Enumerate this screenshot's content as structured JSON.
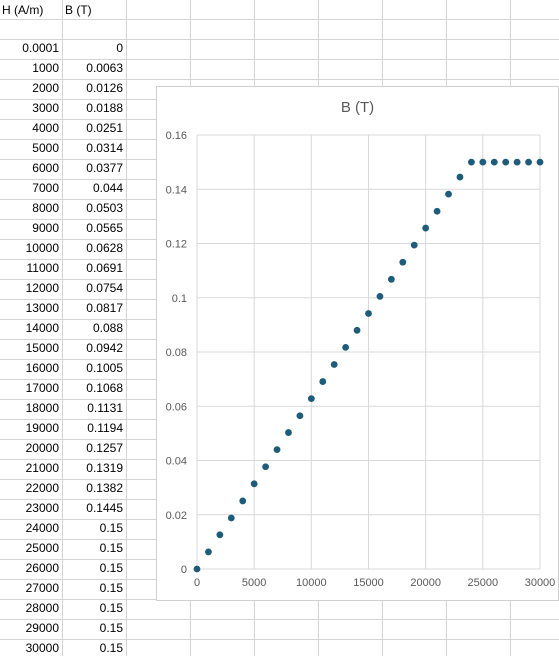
{
  "sheet": {
    "headers": [
      "H (A/m)",
      "B (T)"
    ],
    "rows": [
      [
        "0.0001",
        "0"
      ],
      [
        "1000",
        "0.0063"
      ],
      [
        "2000",
        "0.0126"
      ],
      [
        "3000",
        "0.0188"
      ],
      [
        "4000",
        "0.0251"
      ],
      [
        "5000",
        "0.0314"
      ],
      [
        "6000",
        "0.0377"
      ],
      [
        "7000",
        "0.044"
      ],
      [
        "8000",
        "0.0503"
      ],
      [
        "9000",
        "0.0565"
      ],
      [
        "10000",
        "0.0628"
      ],
      [
        "11000",
        "0.0691"
      ],
      [
        "12000",
        "0.0754"
      ],
      [
        "13000",
        "0.0817"
      ],
      [
        "14000",
        "0.088"
      ],
      [
        "15000",
        "0.0942"
      ],
      [
        "16000",
        "0.1005"
      ],
      [
        "17000",
        "0.1068"
      ],
      [
        "18000",
        "0.1131"
      ],
      [
        "19000",
        "0.1194"
      ],
      [
        "20000",
        "0.1257"
      ],
      [
        "21000",
        "0.1319"
      ],
      [
        "22000",
        "0.1382"
      ],
      [
        "23000",
        "0.1445"
      ],
      [
        "24000",
        "0.15"
      ],
      [
        "25000",
        "0.15"
      ],
      [
        "26000",
        "0.15"
      ],
      [
        "27000",
        "0.15"
      ],
      [
        "28000",
        "0.15"
      ],
      [
        "29000",
        "0.15"
      ],
      [
        "30000",
        "0.15"
      ]
    ]
  },
  "chart_data": {
    "type": "scatter",
    "title": "B (T)",
    "xlabel": "",
    "ylabel": "",
    "xlim": [
      0,
      30000
    ],
    "ylim": [
      0,
      0.16
    ],
    "xticks": [
      0,
      5000,
      10000,
      15000,
      20000,
      25000,
      30000
    ],
    "xtick_labels": [
      "0",
      "5000",
      "10000",
      "15000",
      "20000",
      "25000",
      "30000"
    ],
    "yticks": [
      0,
      0.02,
      0.04,
      0.06,
      0.08,
      0.1,
      0.12,
      0.14,
      0.16
    ],
    "ytick_labels": [
      "0",
      "0.02",
      "0.04",
      "0.06",
      "0.08",
      "0.1",
      "0.12",
      "0.14",
      "0.16"
    ],
    "grid": true,
    "legend": "none",
    "series": [
      {
        "color": "#1f5c7a",
        "x": [
          0.0001,
          1000,
          2000,
          3000,
          4000,
          5000,
          6000,
          7000,
          8000,
          9000,
          10000,
          11000,
          12000,
          13000,
          14000,
          15000,
          16000,
          17000,
          18000,
          19000,
          20000,
          21000,
          22000,
          23000,
          24000,
          25000,
          26000,
          27000,
          28000,
          29000,
          30000
        ],
        "y": [
          0,
          0.0063,
          0.0126,
          0.0188,
          0.0251,
          0.0314,
          0.0377,
          0.044,
          0.0503,
          0.0565,
          0.0628,
          0.0691,
          0.0754,
          0.0817,
          0.088,
          0.0942,
          0.1005,
          0.1068,
          0.1131,
          0.1194,
          0.1257,
          0.1319,
          0.1382,
          0.1445,
          0.15,
          0.15,
          0.15,
          0.15,
          0.15,
          0.15,
          0.15
        ]
      }
    ]
  }
}
